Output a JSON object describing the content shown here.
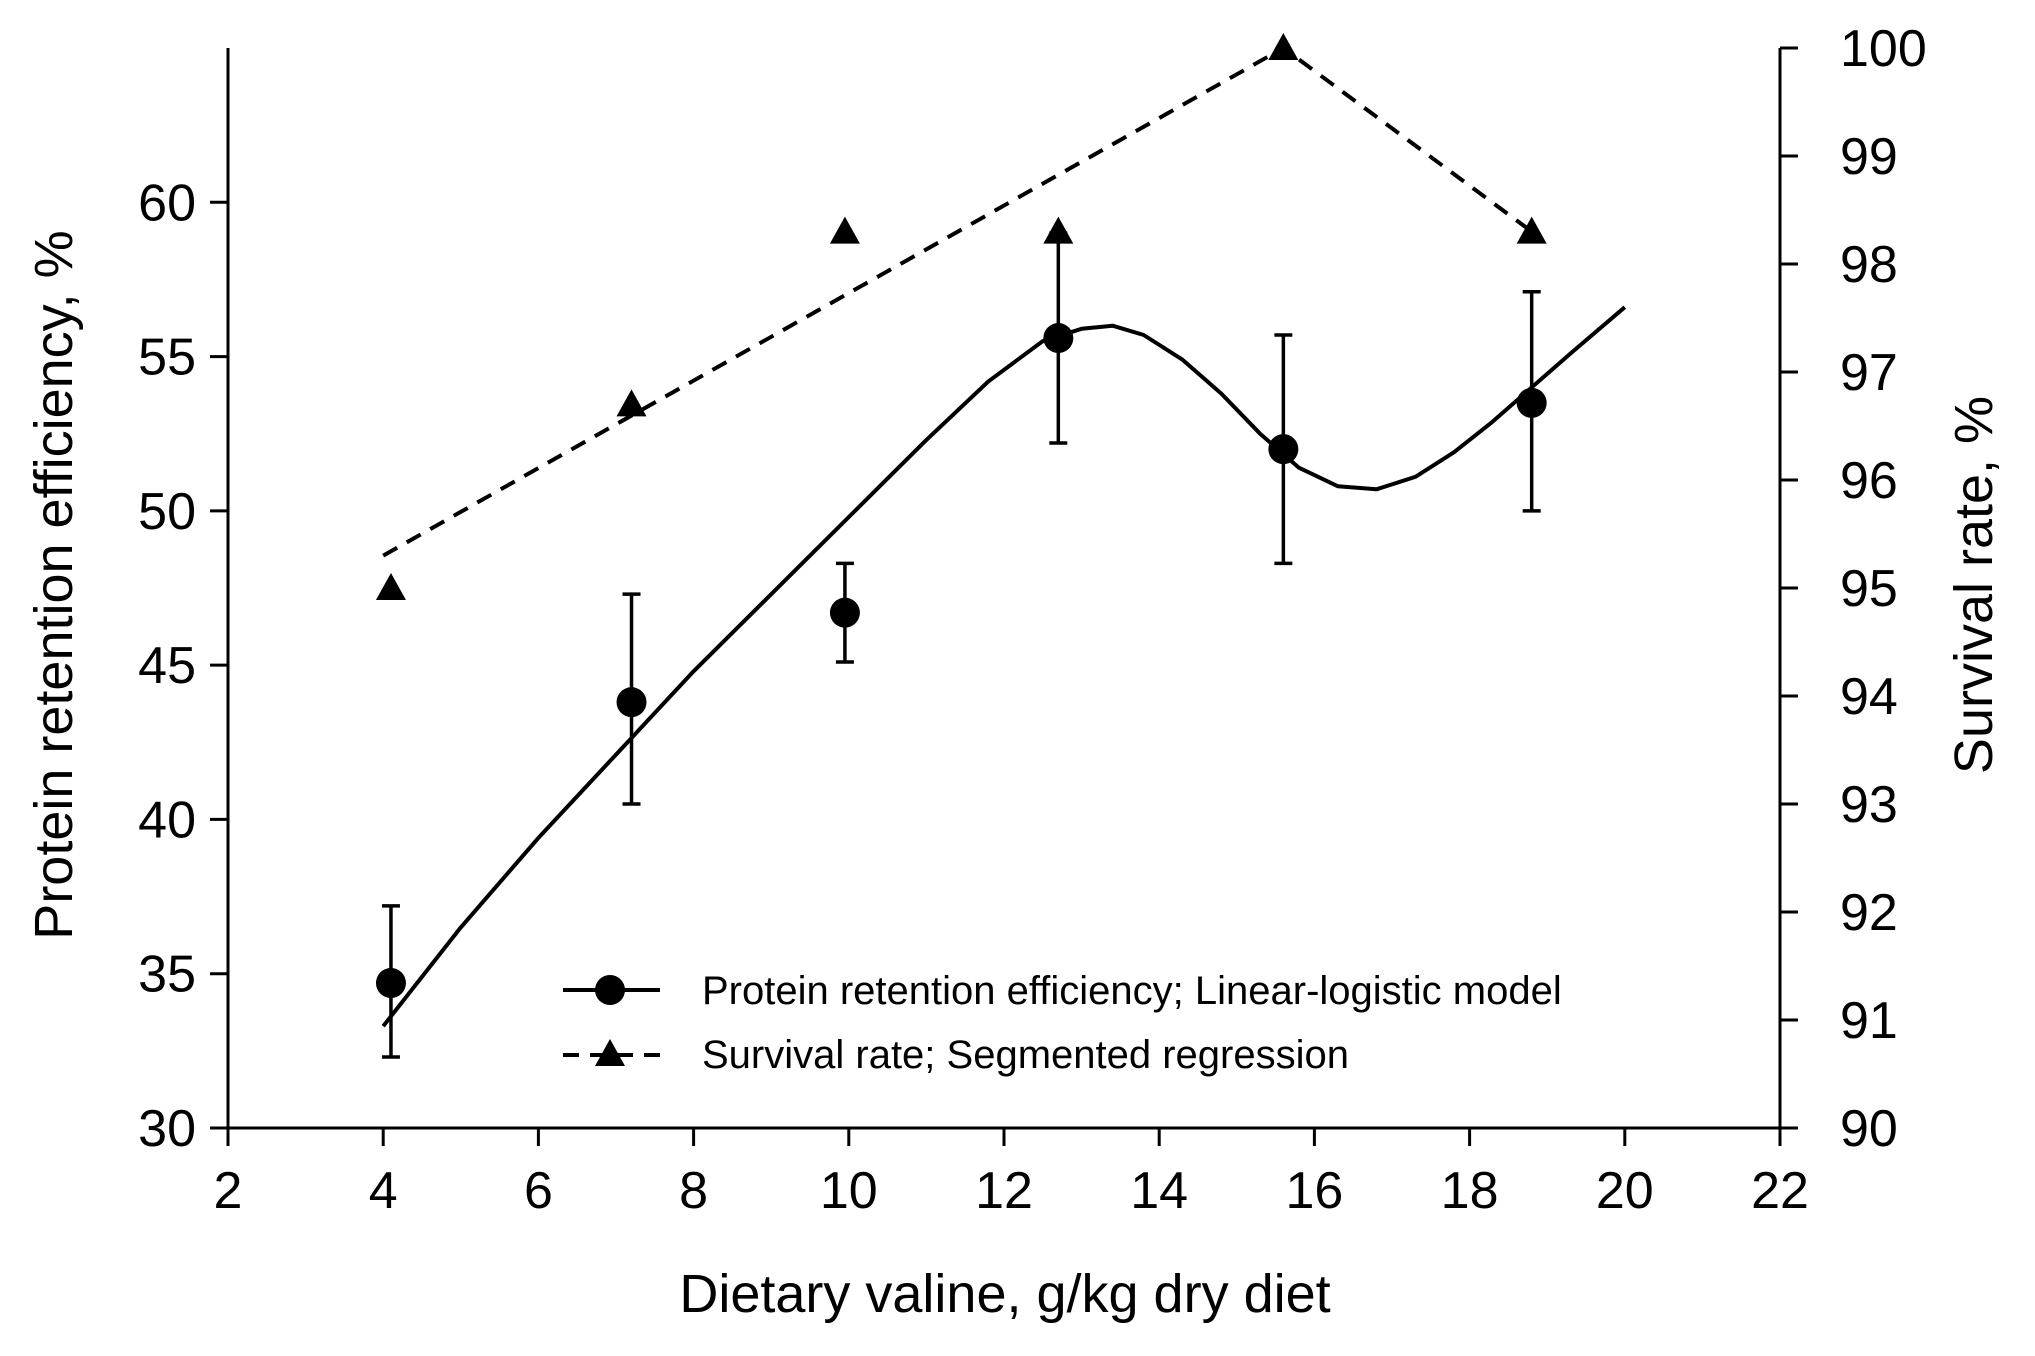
{
  "chart_data": {
    "type": "scatter",
    "xlabel": "Dietary valine, g/kg dry diet",
    "ylabel_left": "Protein retention efficiency, %",
    "ylabel_right": "Survival rate, %",
    "xlim": [
      2,
      22
    ],
    "ylim_left": [
      30,
      65
    ],
    "ylim_right": [
      90,
      100
    ],
    "x_ticks": [
      2,
      4,
      6,
      8,
      10,
      12,
      14,
      16,
      18,
      20,
      22
    ],
    "y_left_ticks": [
      30,
      35,
      40,
      45,
      50,
      55,
      60
    ],
    "y_right_ticks": [
      90,
      91,
      92,
      93,
      94,
      95,
      96,
      97,
      98,
      99,
      100
    ],
    "series": [
      {
        "name": "Protein retention efficiency; Linear-logistic model",
        "axis": "left",
        "marker": "circle",
        "x": [
          4.1,
          7.2,
          9.95,
          12.7,
          15.6,
          18.8
        ],
        "y": [
          34.7,
          43.8,
          46.7,
          55.6,
          52.0,
          53.5
        ],
        "error_low": [
          32.3,
          40.5,
          45.1,
          52.2,
          48.3,
          50.0
        ],
        "error_high": [
          37.2,
          47.3,
          48.3,
          59.0,
          55.7,
          57.1
        ],
        "fit": {
          "style": "solid",
          "x": [
            4.0,
            5.0,
            6.0,
            7.0,
            8.0,
            9.0,
            10.0,
            11.0,
            11.8,
            12.5,
            13.0,
            13.4,
            13.8,
            14.3,
            14.8,
            15.3,
            15.8,
            16.3,
            16.8,
            17.3,
            17.8,
            18.3,
            18.8,
            19.3,
            20.0
          ],
          "y": [
            33.3,
            36.5,
            39.4,
            42.1,
            44.8,
            47.3,
            49.8,
            52.3,
            54.2,
            55.5,
            55.9,
            56.0,
            55.7,
            54.9,
            53.8,
            52.5,
            51.4,
            50.8,
            50.7,
            51.1,
            51.9,
            52.9,
            54.0,
            55.1,
            56.6
          ]
        }
      },
      {
        "name": "Survival rate; Segmented regression",
        "axis": "right",
        "marker": "triangle",
        "x": [
          4.1,
          7.2,
          9.95,
          12.7,
          15.6,
          18.8
        ],
        "y": [
          95.0,
          96.7,
          98.3,
          98.3,
          100.0,
          98.3
        ],
        "fit": {
          "style": "dashed",
          "x": [
            4.0,
            15.6,
            18.8
          ],
          "y": [
            95.3,
            100.0,
            98.3
          ]
        }
      }
    ],
    "legend_position": "bottom-center"
  }
}
